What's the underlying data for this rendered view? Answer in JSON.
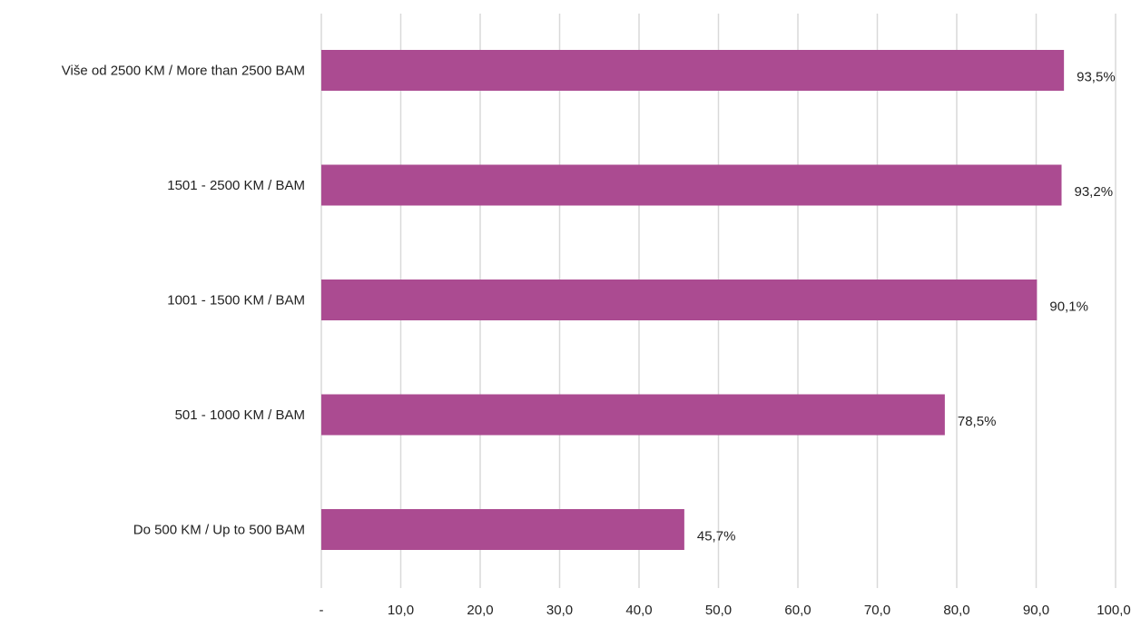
{
  "chart_data": {
    "type": "bar",
    "orientation": "horizontal",
    "categories": [
      "Više od 2500 KM / More than 2500 BAM",
      "1501 - 2500 KM / BAM",
      "1001 - 1500 KM / BAM",
      "501 - 1000 KM / BAM",
      "Do 500 KM / Up to 500 BAM"
    ],
    "values": [
      93.5,
      93.2,
      90.1,
      78.5,
      45.7
    ],
    "value_labels": [
      "93,5%",
      "93,2%",
      "90,1%",
      "78,5%",
      "45,7%"
    ],
    "xlim": [
      0,
      100
    ],
    "x_ticks": [
      0,
      10,
      20,
      30,
      40,
      50,
      60,
      70,
      80,
      90,
      100
    ],
    "x_tick_labels": [
      "-",
      "10,0",
      "20,0",
      "30,0",
      "40,0",
      "50,0",
      "60,0",
      "70,0",
      "80,0",
      "90,0",
      "100,0"
    ],
    "bar_color": "#ab4b91",
    "grid": "vertical",
    "legend": "none",
    "title": "",
    "xlabel": "",
    "ylabel": ""
  }
}
